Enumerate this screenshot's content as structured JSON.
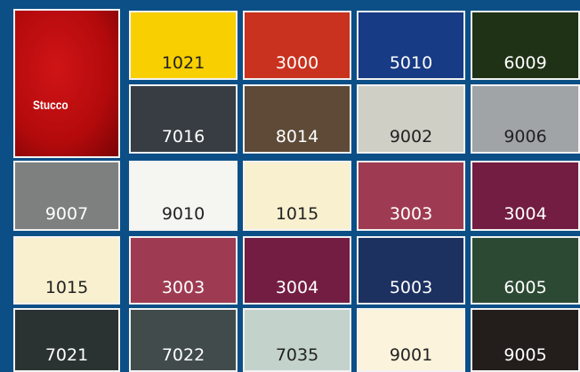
{
  "tiles": [
    {
      "label": "Stucco",
      "color": "#b30a0c"
    },
    {
      "label": "1021",
      "color": "#f8cf00"
    },
    {
      "label": "3000",
      "color": "#c8321e"
    },
    {
      "label": "5010",
      "color": "#173b85"
    },
    {
      "label": "6009",
      "color": "#1f3216"
    },
    {
      "label": "7016",
      "color": "#373d43"
    },
    {
      "label": "8014",
      "color": "#5e4a37"
    },
    {
      "label": "9002",
      "color": "#cfcfc6"
    },
    {
      "label": "9006",
      "color": "#a0a4a7"
    },
    {
      "label": "9007",
      "color": "#7e7f7f"
    },
    {
      "label": "9010",
      "color": "#f5f5f2"
    },
    {
      "label": "1015",
      "color": "#f9f0cf"
    },
    {
      "label": "3003",
      "color": "#9e3b52"
    },
    {
      "label": "3004",
      "color": "#731d42"
    },
    {
      "label": "1015",
      "color": "#f9f0cf"
    },
    {
      "label": "3003",
      "color": "#9e3b52"
    },
    {
      "label": "3004",
      "color": "#731d42"
    },
    {
      "label": "5003",
      "color": "#1d3160"
    },
    {
      "label": "6005",
      "color": "#2c4a33"
    },
    {
      "label": "7021",
      "color": "#2a3232"
    },
    {
      "label": "7022",
      "color": "#424b4b"
    },
    {
      "label": "7035",
      "color": "#c4d2cc"
    },
    {
      "label": "9001",
      "color": "#fbf3dc"
    },
    {
      "label": "9005",
      "color": "#231d1b"
    }
  ]
}
